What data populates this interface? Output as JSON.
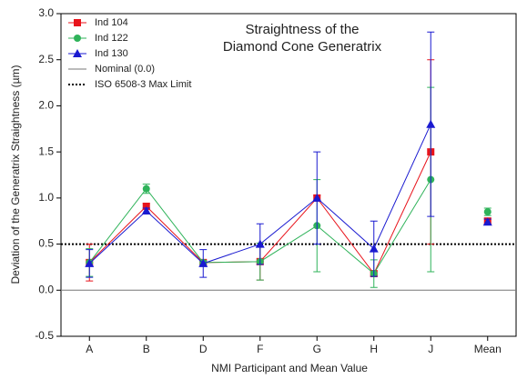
{
  "chart_data": {
    "type": "line",
    "title": [
      "Straightness of the",
      "Diamond Cone Generatrix"
    ],
    "x_label": "NMI Participant and Mean Value",
    "y_label": "Deviation of the Generatrix Straightness (µm)",
    "categories": [
      "A",
      "B",
      "D",
      "F",
      "G",
      "H",
      "J",
      "Mean"
    ],
    "ylim": [
      -0.5,
      3.0
    ],
    "yticks": [
      -0.5,
      {
        "value": 0,
        "label": "0.0"
      },
      0.5,
      {
        "value": 1,
        "label": "1.0"
      },
      1.5,
      {
        "value": 2,
        "label": "2.0"
      },
      2.5,
      {
        "value": 3,
        "label": "3.0"
      }
    ],
    "series": [
      {
        "name": "Ind 104",
        "color": "#e8131b",
        "marker": "square",
        "values": [
          0.3,
          0.91,
          0.3,
          0.31,
          1.0,
          0.18,
          1.5,
          0.75
        ],
        "errors": [
          0.2,
          0.03,
          0.02,
          0.2,
          0.03,
          0.02,
          1.0,
          0.03
        ]
      },
      {
        "name": "Ind 122",
        "color": "#2fb35a",
        "marker": "circle",
        "values": [
          0.3,
          1.1,
          0.3,
          0.31,
          0.7,
          0.18,
          1.2,
          0.85
        ],
        "errors": [
          0.15,
          0.05,
          0.02,
          0.2,
          0.5,
          0.15,
          1.0,
          0.04
        ]
      },
      {
        "name": "Ind 130",
        "color": "#1a1ad0",
        "marker": "triangle",
        "values": [
          0.29,
          0.86,
          0.29,
          0.5,
          1.0,
          0.45,
          1.8,
          0.74
        ],
        "errors": [
          0.15,
          0.03,
          0.15,
          0.22,
          0.5,
          0.3,
          1.0,
          0.03
        ]
      }
    ],
    "reference_lines": [
      {
        "name": "Nominal (0.0)",
        "value": 0,
        "style": "solid",
        "color": "#777777"
      },
      {
        "name": "ISO 6508-3 Max Limit",
        "value": 0.5,
        "style": "dotted",
        "color": "#000000"
      }
    ]
  }
}
